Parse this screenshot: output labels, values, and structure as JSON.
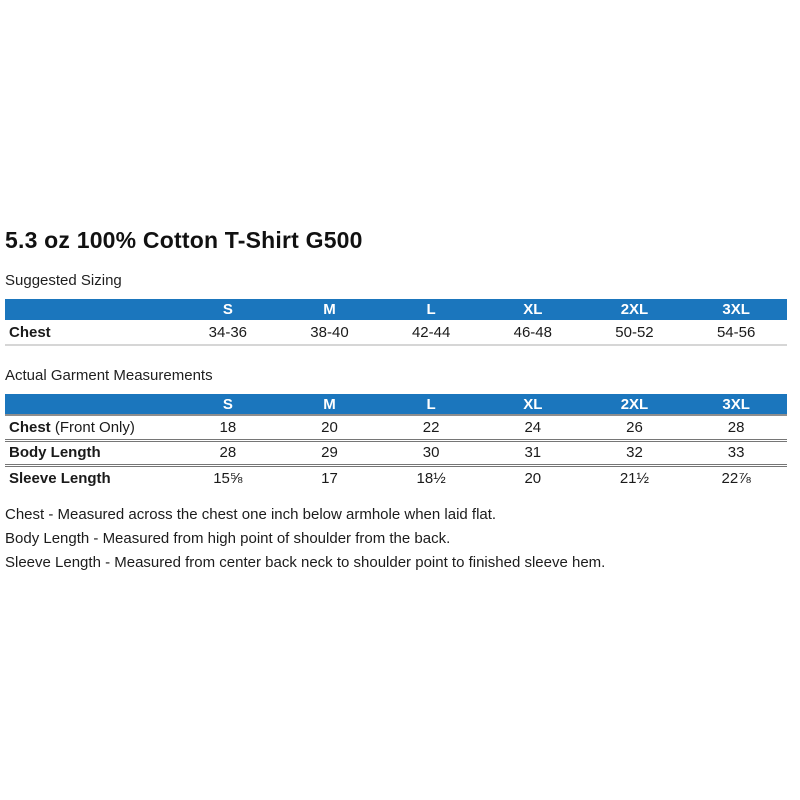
{
  "title": "5.3 oz 100% Cotton T-Shirt G500",
  "suggested": {
    "label": "Suggested Sizing",
    "columns": [
      "S",
      "M",
      "L",
      "XL",
      "2XL",
      "3XL"
    ],
    "rows": [
      {
        "label": "Chest",
        "suffix": "",
        "values": [
          "34-36",
          "38-40",
          "42-44",
          "46-48",
          "50-52",
          "54-56"
        ]
      }
    ]
  },
  "actual": {
    "label": "Actual Garment Measurements",
    "columns": [
      "S",
      "M",
      "L",
      "XL",
      "2XL",
      "3XL"
    ],
    "rows": [
      {
        "label": "Chest",
        "suffix": "(Front Only)",
        "values": [
          "18",
          "20",
          "22",
          "24",
          "26",
          "28"
        ]
      },
      {
        "label": "Body Length",
        "suffix": "",
        "values": [
          "28",
          "29",
          "30",
          "31",
          "32",
          "33"
        ]
      },
      {
        "label": "Sleeve Length",
        "suffix": "",
        "values": [
          "15⅝",
          "17",
          "18½",
          "20",
          "21½",
          "22⅞"
        ]
      }
    ]
  },
  "notes": [
    "Chest - Measured across the chest one inch below armhole when laid flat.",
    "Body Length - Measured from high point of shoulder from the back.",
    "Sleeve Length - Measured from center back neck to shoulder point to finished sleeve hem."
  ],
  "colors": {
    "header_bg": "#1B76BD",
    "header_text": "#FFFFFF"
  }
}
